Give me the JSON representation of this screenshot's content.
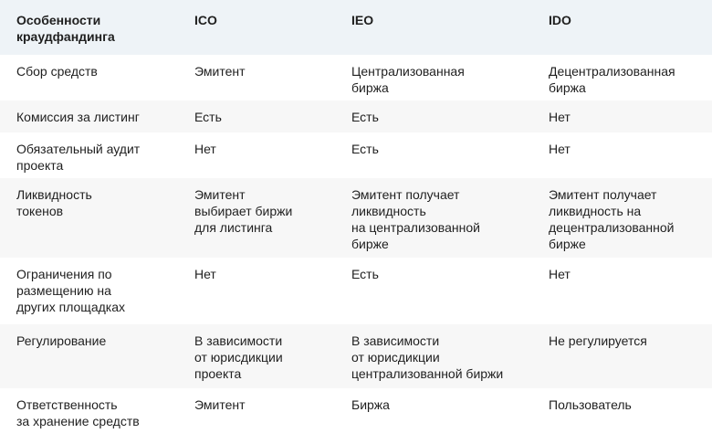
{
  "table": {
    "headers": [
      "Особенности\nкраудфандинга",
      "ICO",
      "IEO",
      "IDO"
    ],
    "rows": [
      [
        "Сбор средств",
        "Эмитент",
        "Централизованная\nбиржа",
        "Децентрализованная\nбиржа"
      ],
      [
        "Комиссия за листинг",
        "Есть",
        "Есть",
        "Нет"
      ],
      [
        "Обязательный аудит\nпроекта",
        "Нет",
        "Есть",
        "Нет"
      ],
      [
        "Ликвидность\nтокенов",
        "Эмитент\nвыбирает биржи\nдля листинга",
        "Эмитент получает\nликвидность\nна централизованной\nбирже",
        "Эмитент получает\nликвидность на\nдецентрализованной\nбирже"
      ],
      [
        "Ограничения по\nразмещению на\nдругих площадках",
        "Нет",
        "Есть",
        "Нет"
      ],
      [
        "Регулирование",
        "В зависимости\nот юрисдикции\nпроекта",
        "В зависимости\nот юрисдикции\nцентрализованной биржи",
        "Не регулируется"
      ],
      [
        "Ответственность\nза хранение средств",
        "Эмитент",
        "Биржа",
        "Пользователь"
      ]
    ]
  },
  "colors": {
    "header_bg": "#eef3f7",
    "stripe_bg": "#f7f7f7",
    "text": "#1f1f1f"
  }
}
